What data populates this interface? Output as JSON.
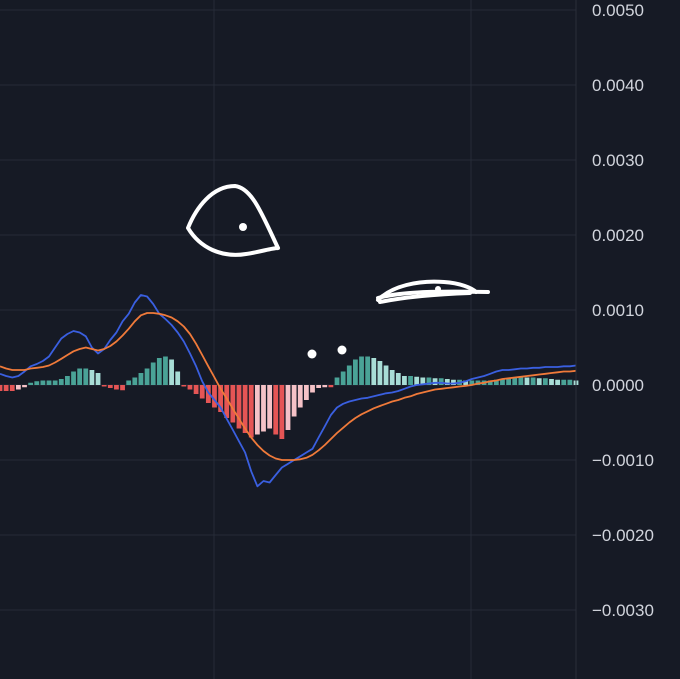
{
  "chart_data": {
    "type": "line",
    "title": "",
    "xlabel": "",
    "ylabel": "",
    "ylim": [
      -0.004,
      0.0055
    ],
    "y_ticks": [
      "0.0050",
      "0.0040",
      "0.0030",
      "0.0020",
      "0.0010",
      "0.0000",
      "−0.0010",
      "−0.0020",
      "−0.0030"
    ],
    "grid": true,
    "colors": {
      "background": "#161a25",
      "grid": "#262b38",
      "macd": "#3a5fe0",
      "signal": "#f07a3a",
      "hist_pos_strong": "#4aa397",
      "hist_pos_weak": "#a8ddd6",
      "hist_neg_strong": "#e55555",
      "hist_neg_weak": "#f5c2c7",
      "tick": "#d1d4dc"
    },
    "x": [
      0,
      1,
      2,
      3,
      4,
      5,
      6,
      7,
      8,
      9,
      10,
      11,
      12,
      13,
      14,
      15,
      16,
      17,
      18,
      19,
      20,
      21,
      22,
      23,
      24,
      25,
      26,
      27,
      28,
      29,
      30,
      31,
      32,
      33,
      34,
      35,
      36,
      37,
      38,
      39,
      40,
      41,
      42,
      43,
      44,
      45,
      46,
      47,
      48,
      49,
      50,
      51,
      52,
      53,
      54,
      55,
      56,
      57,
      58,
      59,
      60,
      61,
      62,
      63,
      64,
      65,
      66,
      67,
      68,
      69,
      70,
      71,
      72,
      73,
      74,
      75,
      76,
      77,
      78,
      79,
      80,
      81,
      82,
      83,
      84,
      85,
      86,
      87,
      88,
      89,
      90,
      91,
      92,
      93,
      94
    ],
    "series": [
      {
        "role": "macd",
        "values": [
          0.00015,
          0.00012,
          0.0001,
          0.00012,
          0.00018,
          0.00025,
          0.00028,
          0.00032,
          0.00038,
          0.0005,
          0.00062,
          0.00068,
          0.00072,
          0.0007,
          0.00065,
          0.0005,
          0.00042,
          0.00048,
          0.0006,
          0.0007,
          0.00085,
          0.00095,
          0.0011,
          0.0012,
          0.00118,
          0.00108,
          0.00095,
          0.00088,
          0.0008,
          0.0007,
          0.00058,
          0.00042,
          0.00025,
          5e-05,
          -0.0001,
          -0.0002,
          -0.0003,
          -0.00045,
          -0.0006,
          -0.00075,
          -0.0009,
          -0.00115,
          -0.00135,
          -0.00128,
          -0.0013,
          -0.0012,
          -0.0011,
          -0.00105,
          -0.001,
          -0.00095,
          -0.0009,
          -0.00085,
          -0.0007,
          -0.00055,
          -0.0004,
          -0.0003,
          -0.00025,
          -0.00022,
          -0.0002,
          -0.00018,
          -0.00017,
          -0.00015,
          -0.00013,
          -0.00011,
          -0.0001,
          -8e-05,
          -5e-05,
          -2e-05,
          0.0,
          1e-05,
          2e-05,
          3e-05,
          3e-05,
          2e-05,
          2e-05,
          3e-05,
          5e-05,
          8e-05,
          0.0001,
          0.00012,
          0.00015,
          0.00018,
          0.0002,
          0.0002,
          0.00021,
          0.00022,
          0.00022,
          0.00023,
          0.00023,
          0.00024,
          0.00024,
          0.00024,
          0.00025,
          0.00025,
          0.00026
        ]
      },
      {
        "role": "signal",
        "values": [
          0.00025,
          0.00022,
          0.0002,
          0.0002,
          0.0002,
          0.00022,
          0.00023,
          0.00024,
          0.00026,
          0.0003,
          0.00035,
          0.0004,
          0.00045,
          0.00048,
          0.0005,
          0.00048,
          0.00046,
          0.00048,
          0.00052,
          0.00058,
          0.00066,
          0.00075,
          0.00085,
          0.00093,
          0.00096,
          0.00096,
          0.00095,
          0.00093,
          0.0009,
          0.00085,
          0.00078,
          0.00068,
          0.00055,
          0.0004,
          0.00025,
          0.0001,
          -5e-05,
          -0.00018,
          -0.00032,
          -0.00045,
          -0.00058,
          -0.0007,
          -0.0008,
          -0.00088,
          -0.00094,
          -0.00098,
          -0.001,
          -0.001,
          -0.001,
          -0.00099,
          -0.00097,
          -0.00093,
          -0.00087,
          -0.0008,
          -0.00072,
          -0.00064,
          -0.00057,
          -0.0005,
          -0.00044,
          -0.00039,
          -0.00035,
          -0.00031,
          -0.00028,
          -0.00025,
          -0.00022,
          -0.0002,
          -0.00017,
          -0.00015,
          -0.00012,
          -0.0001,
          -8e-05,
          -6e-05,
          -5e-05,
          -4e-05,
          -3e-05,
          -2e-05,
          -1e-05,
          0.0,
          2e-05,
          3e-05,
          5e-05,
          6e-05,
          8e-05,
          9e-05,
          0.0001,
          0.00011,
          0.00012,
          0.00013,
          0.00014,
          0.00015,
          0.00016,
          0.00017,
          0.00018,
          0.00018,
          0.00019
        ]
      }
    ],
    "histogram": [
      -8e-05,
      -8e-05,
      -8e-05,
      -6e-05,
      -3e-05,
      3e-05,
      5e-05,
      6e-05,
      6e-05,
      6e-05,
      8e-05,
      0.00012,
      0.00018,
      0.00022,
      0.00022,
      0.0002,
      0.00016,
      -2e-05,
      -4e-05,
      -6e-05,
      -7e-05,
      6e-05,
      0.0001,
      0.00016,
      0.00022,
      0.0003,
      0.00036,
      0.00038,
      0.00034,
      0.00018,
      -2e-05,
      -6e-05,
      -0.00012,
      -0.00018,
      -0.00024,
      -0.0003,
      -0.00036,
      -0.00044,
      -0.0005,
      -0.00058,
      -0.00064,
      -0.0007,
      -0.00066,
      -0.00062,
      -0.00058,
      -0.00066,
      -0.00072,
      -0.0006,
      -0.00042,
      -0.0003,
      -0.0002,
      -0.0001,
      -4e-05,
      -3e-05,
      -3e-05,
      0.0001,
      0.00018,
      0.00026,
      0.00034,
      0.00038,
      0.00038,
      0.00036,
      0.00032,
      0.00026,
      0.0002,
      0.00016,
      0.00012,
      0.00012,
      0.00011,
      0.0001,
      0.0001,
      9e-05,
      9e-05,
      8e-05,
      7e-05,
      7e-05,
      6e-05,
      6e-05,
      6e-05,
      6e-05,
      6e-05,
      7e-05,
      8e-05,
      9e-05,
      0.0001,
      0.00011,
      0.0001,
      0.0001,
      9e-05,
      9e-05,
      8e-05,
      7e-05,
      7e-05,
      7e-05,
      6e-05
    ]
  },
  "annotations": [
    {
      "kind": "drawn-loop",
      "color": "#ffffff"
    },
    {
      "kind": "drawn-dot",
      "color": "#ffffff"
    },
    {
      "kind": "drawn-dot",
      "color": "#ffffff"
    },
    {
      "kind": "drawn-dot",
      "color": "#ffffff"
    },
    {
      "kind": "drawn-swoosh",
      "color": "#ffffff"
    }
  ]
}
